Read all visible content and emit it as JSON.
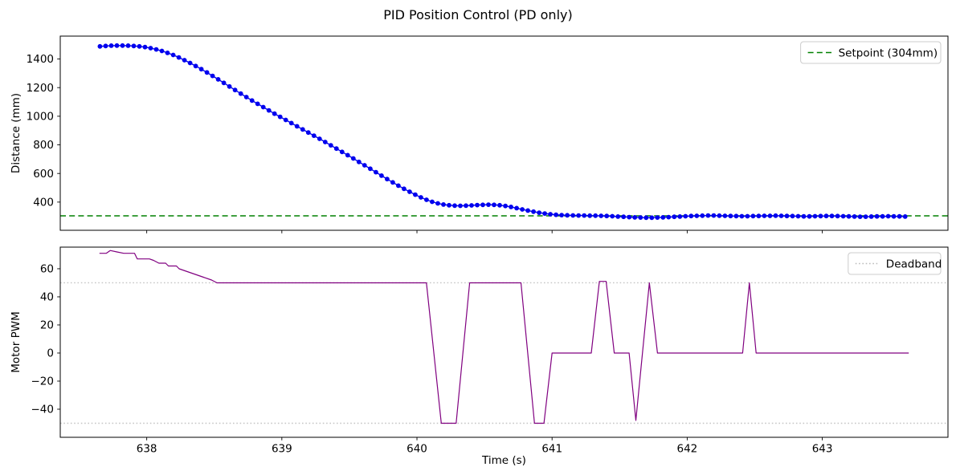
{
  "figure": {
    "title": "PID Position Control (PD only)",
    "background": "#ffffff",
    "spine_color": "#000000"
  },
  "chart_data": [
    {
      "id": "distance",
      "type": "line",
      "title": "",
      "xlabel": "",
      "ylabel": "Distance (mm)",
      "xlim": [
        637.36,
        643.93
      ],
      "ylim": [
        203,
        1560
      ],
      "xticks": [
        638,
        639,
        640,
        641,
        642,
        643
      ],
      "yticks": [
        400,
        600,
        800,
        1000,
        1200,
        1400
      ],
      "show_xtick_labels": false,
      "grid": false,
      "legend_position": "upper right",
      "legend": {
        "label": "Setpoint (304mm)",
        "color": "#008000",
        "dash": "dashed"
      },
      "reference_lines": [
        {
          "name": "setpoint-line",
          "value": 304,
          "color": "#008000",
          "dash": "dashed",
          "width": 1.6
        }
      ],
      "series": [
        {
          "name": "distance",
          "color": "#0000ee",
          "line_width": 1.4,
          "marker": true,
          "marker_radius": 2.9,
          "t_start": 637.654,
          "t_step": 0.04167,
          "values": [
            1488,
            1491,
            1493,
            1494,
            1494,
            1493,
            1491,
            1488,
            1483,
            1476,
            1467,
            1456,
            1443,
            1428,
            1411,
            1392,
            1372,
            1351,
            1329,
            1306,
            1282,
            1258,
            1233,
            1208,
            1183,
            1158,
            1134,
            1110,
            1087,
            1064,
            1041,
            1018,
            996,
            974,
            952,
            930,
            908,
            886,
            864,
            842,
            820,
            797,
            774,
            751,
            728,
            705,
            681,
            657,
            633,
            609,
            585,
            561,
            538,
            515,
            493,
            472,
            452,
            433,
            416,
            402,
            391,
            383,
            378,
            375,
            374,
            375,
            377,
            379,
            381,
            382,
            381,
            378,
            373,
            366,
            358,
            349,
            341,
            333,
            326,
            320,
            315,
            311,
            309,
            308,
            307,
            306,
            306,
            305,
            305,
            304,
            303,
            301,
            299,
            297,
            295,
            293,
            292,
            291,
            291,
            292,
            293,
            295,
            297,
            299,
            301,
            303,
            304,
            305,
            306,
            306,
            305,
            304,
            303,
            302,
            301,
            301,
            302,
            303,
            304,
            304,
            305,
            304,
            303,
            302,
            301,
            300,
            300,
            301,
            302,
            303,
            303,
            302,
            301,
            300,
            299,
            298,
            298,
            299,
            300,
            300,
            301,
            300,
            300,
            299
          ]
        }
      ]
    },
    {
      "id": "pwm",
      "type": "line",
      "title": "",
      "xlabel": "Time (s)",
      "ylabel": "Motor PWM",
      "xlim": [
        637.36,
        643.93
      ],
      "ylim": [
        -60,
        75.4
      ],
      "xticks": [
        638,
        639,
        640,
        641,
        642,
        643
      ],
      "yticks": [
        -40,
        -20,
        0,
        20,
        40,
        60
      ],
      "show_xtick_labels": true,
      "grid": false,
      "legend_position": "upper right",
      "legend": {
        "label": "Deadband",
        "color": "#bbbbbb",
        "dash": "dotted"
      },
      "reference_lines": [
        {
          "name": "deadband-line-upper",
          "value": 50,
          "color": "#c4c4c4",
          "dash": "dotted",
          "width": 1.4
        },
        {
          "name": "deadband-line-lower",
          "value": -50,
          "color": "#c4c4c4",
          "dash": "dotted",
          "width": 1.4
        }
      ],
      "series": [
        {
          "name": "pwm",
          "color": "#800080",
          "line_width": 1.2,
          "marker": false,
          "points": [
            [
              637.65,
              71
            ],
            [
              637.7,
              71
            ],
            [
              637.73,
              73
            ],
            [
              637.78,
              72
            ],
            [
              637.83,
              71
            ],
            [
              637.91,
              71
            ],
            [
              637.93,
              67
            ],
            [
              638.02,
              67
            ],
            [
              638.05,
              66
            ],
            [
              638.09,
              64
            ],
            [
              638.14,
              64
            ],
            [
              638.16,
              62
            ],
            [
              638.22,
              62
            ],
            [
              638.24,
              60
            ],
            [
              638.3,
              58
            ],
            [
              638.36,
              56
            ],
            [
              638.42,
              54
            ],
            [
              638.48,
              52
            ],
            [
              638.52,
              50
            ],
            [
              640.07,
              50
            ],
            [
              640.18,
              -50
            ],
            [
              640.29,
              -50
            ],
            [
              640.39,
              50
            ],
            [
              640.77,
              50
            ],
            [
              640.87,
              -50
            ],
            [
              640.94,
              -50
            ],
            [
              641.0,
              0
            ],
            [
              641.29,
              0
            ],
            [
              641.35,
              51
            ],
            [
              641.4,
              51
            ],
            [
              641.46,
              0
            ],
            [
              641.57,
              0
            ],
            [
              641.62,
              -48
            ],
            [
              641.72,
              50
            ],
            [
              641.78,
              0
            ],
            [
              642.41,
              0
            ],
            [
              642.46,
              50
            ],
            [
              642.51,
              0
            ],
            [
              643.64,
              0
            ]
          ]
        }
      ]
    }
  ]
}
